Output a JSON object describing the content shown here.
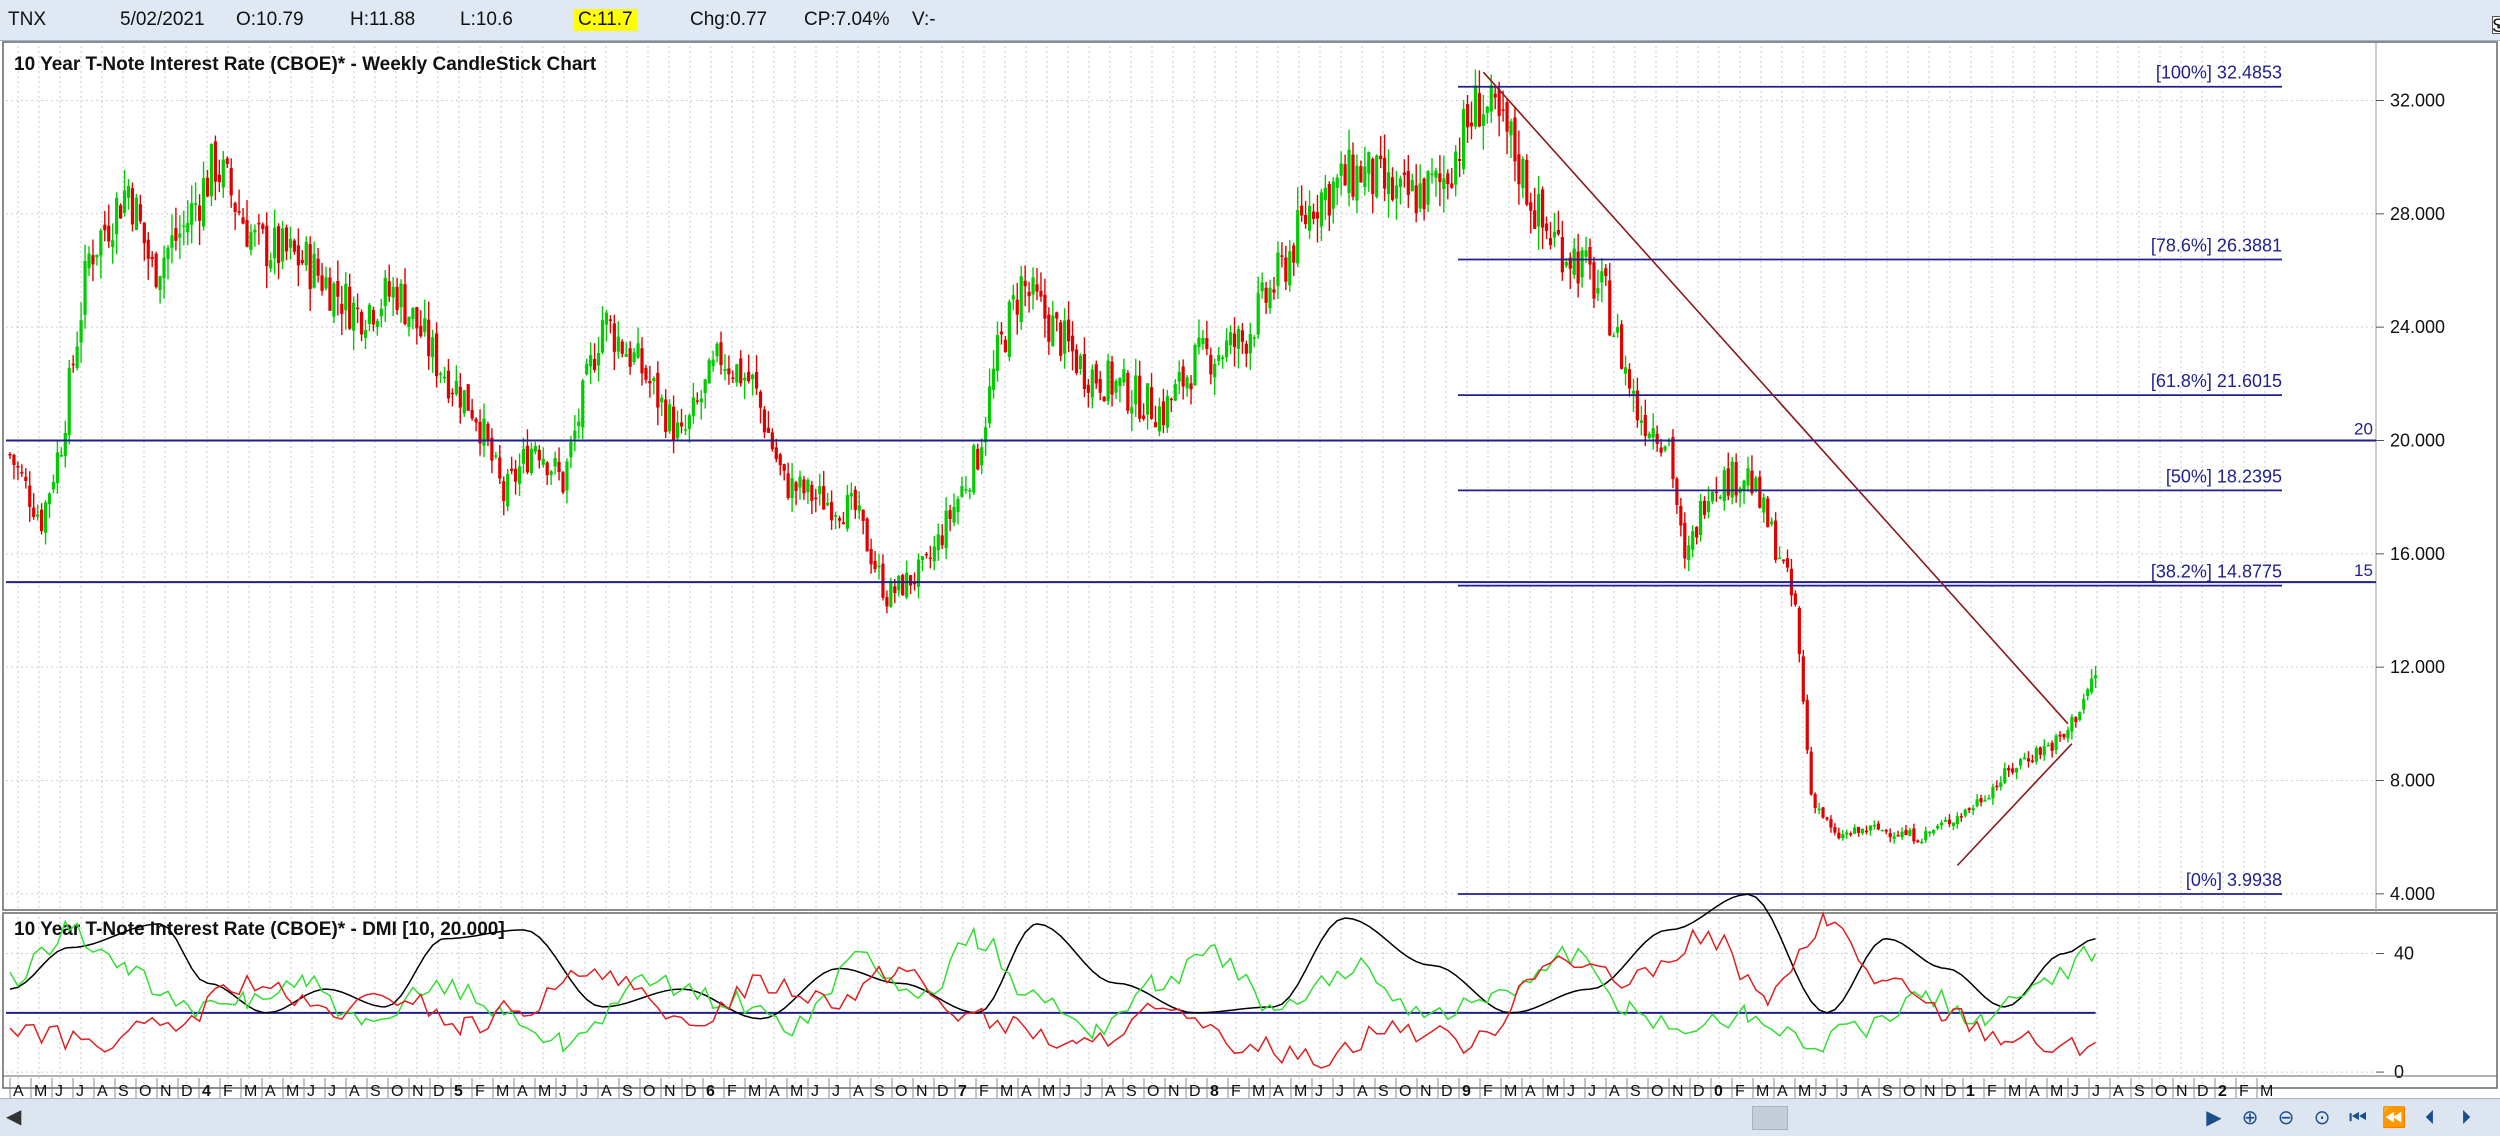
{
  "header": {
    "symbol": "TNX",
    "date": "5/02/2021",
    "open": "O:10.79",
    "high": "H:11.88",
    "low": "L:10.6",
    "close": "C:11.7",
    "change": "Chg:0.77",
    "change_pct": "CP:7.04%",
    "volume": "V:-",
    "show_last_label": "Show Last",
    "show_last_checked": true
  },
  "colors": {
    "up": "#00cc00",
    "down": "#e00000",
    "level_line": "#1f1f8f",
    "trend_line": "#8b1a1a",
    "adx": "#000000",
    "di_plus": "#33dd33",
    "di_minus": "#e02020"
  },
  "chart_data": [
    {
      "type": "candlestick",
      "title": "10 Year T-Note Interest Rate (CBOE)* - Weekly CandleStick Chart",
      "ylim": [
        3.5,
        33.5
      ],
      "y_ticks": [
        "4.000",
        "8.000",
        "12.000",
        "16.000",
        "20.000",
        "24.000",
        "28.000",
        "32.000"
      ],
      "y_tick_values": [
        4,
        8,
        12,
        16,
        20,
        24,
        28,
        32
      ],
      "x_ticks": [
        "A",
        "M",
        "J",
        "J",
        "A",
        "S",
        "O",
        "N",
        "D",
        "4",
        "F",
        "M",
        "A",
        "M",
        "J",
        "J",
        "A",
        "S",
        "O",
        "N",
        "D",
        "5",
        "F",
        "M",
        "A",
        "M",
        "J",
        "J",
        "A",
        "S",
        "O",
        "N",
        "D",
        "6",
        "F",
        "M",
        "A",
        "M",
        "J",
        "J",
        "A",
        "S",
        "O",
        "N",
        "D",
        "7",
        "F",
        "M",
        "A",
        "M",
        "J",
        "J",
        "A",
        "S",
        "O",
        "N",
        "D",
        "8",
        "F",
        "M",
        "A",
        "M",
        "J",
        "J",
        "A",
        "S",
        "O",
        "N",
        "D",
        "9",
        "F",
        "M",
        "A",
        "M",
        "J",
        "J",
        "A",
        "S",
        "O",
        "N",
        "D",
        "0",
        "F",
        "M",
        "A",
        "M",
        "J",
        "J",
        "A",
        "S",
        "O",
        "N",
        "D",
        "1",
        "F",
        "M",
        "A",
        "M",
        "J",
        "J",
        "A",
        "S",
        "O",
        "N",
        "D",
        "2",
        "F",
        "M"
      ],
      "price_path": [
        {
          "w": 0,
          "v": 19.5
        },
        {
          "w": 8,
          "v": 17.2
        },
        {
          "w": 13,
          "v": 20.0
        },
        {
          "w": 20,
          "v": 26.5
        },
        {
          "w": 30,
          "v": 29.0
        },
        {
          "w": 36,
          "v": 26.0
        },
        {
          "w": 44,
          "v": 27.5
        },
        {
          "w": 52,
          "v": 29.8
        },
        {
          "w": 62,
          "v": 27.0
        },
        {
          "w": 75,
          "v": 26.3
        },
        {
          "w": 88,
          "v": 24.5
        },
        {
          "w": 98,
          "v": 25.3
        },
        {
          "w": 108,
          "v": 22.8
        },
        {
          "w": 118,
          "v": 21.0
        },
        {
          "w": 125,
          "v": 18.0
        },
        {
          "w": 133,
          "v": 20.0
        },
        {
          "w": 140,
          "v": 18.5
        },
        {
          "w": 150,
          "v": 24.3
        },
        {
          "w": 160,
          "v": 22.5
        },
        {
          "w": 170,
          "v": 20.0
        },
        {
          "w": 180,
          "v": 23.0
        },
        {
          "w": 188,
          "v": 22.0
        },
        {
          "w": 196,
          "v": 18.5
        },
        {
          "w": 204,
          "v": 18.0
        },
        {
          "w": 214,
          "v": 17.5
        },
        {
          "w": 222,
          "v": 14.5
        },
        {
          "w": 232,
          "v": 15.5
        },
        {
          "w": 245,
          "v": 19.5
        },
        {
          "w": 250,
          "v": 23.0
        },
        {
          "w": 256,
          "v": 25.5
        },
        {
          "w": 264,
          "v": 24.0
        },
        {
          "w": 272,
          "v": 22.5
        },
        {
          "w": 282,
          "v": 21.8
        },
        {
          "w": 292,
          "v": 21.0
        },
        {
          "w": 300,
          "v": 22.8
        },
        {
          "w": 312,
          "v": 23.5
        },
        {
          "w": 322,
          "v": 26.0
        },
        {
          "w": 330,
          "v": 28.5
        },
        {
          "w": 342,
          "v": 29.5
        },
        {
          "w": 352,
          "v": 28.5
        },
        {
          "w": 362,
          "v": 29.0
        },
        {
          "w": 372,
          "v": 32.0
        },
        {
          "w": 380,
          "v": 30.5
        },
        {
          "w": 388,
          "v": 27.5
        },
        {
          "w": 396,
          "v": 26.5
        },
        {
          "w": 404,
          "v": 25.0
        },
        {
          "w": 412,
          "v": 21.0
        },
        {
          "w": 420,
          "v": 20.0
        },
        {
          "w": 424,
          "v": 15.5
        },
        {
          "w": 430,
          "v": 18.5
        },
        {
          "w": 440,
          "v": 18.8
        },
        {
          "w": 448,
          "v": 16.0
        },
        {
          "w": 452,
          "v": 14.0
        },
        {
          "w": 456,
          "v": 7.5
        },
        {
          "w": 462,
          "v": 6.0
        },
        {
          "w": 472,
          "v": 6.3
        },
        {
          "w": 484,
          "v": 6.0
        },
        {
          "w": 496,
          "v": 7.0
        },
        {
          "w": 510,
          "v": 8.8
        },
        {
          "w": 520,
          "v": 9.5
        },
        {
          "w": 528,
          "v": 11.7
        }
      ],
      "fib_levels": [
        {
          "label": "[100%] 32.4853",
          "value": 32.4853
        },
        {
          "label": "[78.6%] 26.3881",
          "value": 26.3881
        },
        {
          "label": "[61.8%] 21.6015",
          "value": 21.6015
        },
        {
          "label": "[50%] 18.2395",
          "value": 18.2395
        },
        {
          "label": "[38.2%] 14.8775",
          "value": 14.8775
        },
        {
          "label": "[0%] 3.9938",
          "value": 3.9938
        }
      ],
      "horizontal_lines": [
        {
          "label": "20",
          "value": 20
        },
        {
          "label": "15",
          "value": 15
        }
      ],
      "trend_lines": [
        {
          "from": {
            "w": 373,
            "v": 33.0
          },
          "to": {
            "w": 521,
            "v": 10.0
          }
        },
        {
          "from": {
            "w": 493,
            "v": 5.0
          },
          "to": {
            "w": 522,
            "v": 9.3
          }
        }
      ]
    },
    {
      "type": "line",
      "title": "10 Year T-Note Interest Rate (CBOE)* - DMI [10, 20.000]",
      "ylim": [
        -2,
        52
      ],
      "y_ticks": [
        "0",
        "40"
      ],
      "y_tick_values": [
        0,
        40
      ],
      "reference_line": 20,
      "series": [
        {
          "key": "adx",
          "points": [
            [
              0,
              28
            ],
            [
              15,
              42
            ],
            [
              38,
              50
            ],
            [
              50,
              30
            ],
            [
              65,
              20
            ],
            [
              80,
              28
            ],
            [
              95,
              22
            ],
            [
              110,
              45
            ],
            [
              130,
              48
            ],
            [
              150,
              22
            ],
            [
              170,
              28
            ],
            [
              190,
              18
            ],
            [
              210,
              35
            ],
            [
              225,
              30
            ],
            [
              245,
              20
            ],
            [
              260,
              50
            ],
            [
              280,
              30
            ],
            [
              300,
              20
            ],
            [
              320,
              22
            ],
            [
              338,
              52
            ],
            [
              360,
              36
            ],
            [
              380,
              20
            ],
            [
              400,
              28
            ],
            [
              420,
              48
            ],
            [
              440,
              60
            ],
            [
              460,
              20
            ],
            [
              475,
              45
            ],
            [
              490,
              35
            ],
            [
              505,
              22
            ],
            [
              520,
              40
            ],
            [
              528,
              45
            ]
          ]
        },
        {
          "key": "di_plus",
          "points": [
            [
              0,
              30
            ],
            [
              15,
              48
            ],
            [
              30,
              35
            ],
            [
              45,
              20
            ],
            [
              60,
              25
            ],
            [
              75,
              30
            ],
            [
              90,
              15
            ],
            [
              110,
              30
            ],
            [
              125,
              20
            ],
            [
              140,
              10
            ],
            [
              160,
              30
            ],
            [
              180,
              25
            ],
            [
              200,
              15
            ],
            [
              215,
              40
            ],
            [
              230,
              25
            ],
            [
              245,
              45
            ],
            [
              260,
              25
            ],
            [
              275,
              15
            ],
            [
              290,
              30
            ],
            [
              305,
              40
            ],
            [
              320,
              20
            ],
            [
              340,
              35
            ],
            [
              360,
              20
            ],
            [
              375,
              25
            ],
            [
              395,
              40
            ],
            [
              410,
              20
            ],
            [
              425,
              15
            ],
            [
              440,
              20
            ],
            [
              455,
              10
            ],
            [
              470,
              15
            ],
            [
              485,
              25
            ],
            [
              500,
              18
            ],
            [
              515,
              32
            ],
            [
              528,
              40
            ]
          ]
        },
        {
          "key": "di_minus",
          "points": [
            [
              0,
              15
            ],
            [
              20,
              10
            ],
            [
              40,
              15
            ],
            [
              60,
              30
            ],
            [
              80,
              20
            ],
            [
              100,
              25
            ],
            [
              115,
              15
            ],
            [
              130,
              22
            ],
            [
              150,
              35
            ],
            [
              170,
              15
            ],
            [
              190,
              30
            ],
            [
              210,
              25
            ],
            [
              225,
              35
            ],
            [
              240,
              20
            ],
            [
              255,
              15
            ],
            [
              270,
              8
            ],
            [
              290,
              20
            ],
            [
              310,
              10
            ],
            [
              330,
              5
            ],
            [
              350,
              15
            ],
            [
              370,
              10
            ],
            [
              390,
              38
            ],
            [
              410,
              30
            ],
            [
              430,
              46
            ],
            [
              445,
              25
            ],
            [
              460,
              50
            ],
            [
              475,
              30
            ],
            [
              490,
              20
            ],
            [
              505,
              12
            ],
            [
              520,
              8
            ],
            [
              528,
              10
            ]
          ]
        }
      ]
    }
  ]
}
